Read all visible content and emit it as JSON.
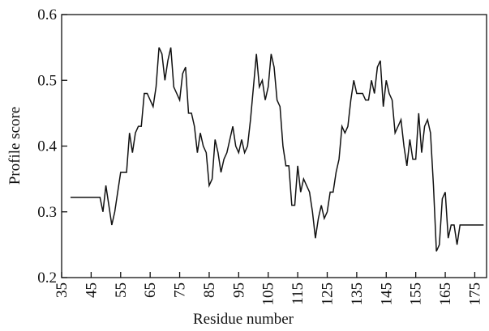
{
  "chart_data": {
    "type": "line",
    "x_label": "Residue number",
    "y_label": "Profile score",
    "xlim": [
      35,
      179
    ],
    "ylim": [
      0.2,
      0.6
    ],
    "xticks": [
      35,
      45,
      55,
      65,
      75,
      85,
      95,
      105,
      115,
      125,
      135,
      145,
      155,
      165,
      175
    ],
    "yticks": [
      0.2,
      0.3,
      0.4,
      0.5,
      0.6
    ],
    "color": "#111111",
    "x": [
      38,
      48,
      49,
      50,
      51,
      52,
      53,
      54,
      55,
      56,
      57,
      58,
      59,
      60,
      61,
      62,
      63,
      64,
      65,
      66,
      67,
      68,
      69,
      70,
      71,
      72,
      73,
      74,
      75,
      76,
      77,
      78,
      79,
      80,
      81,
      82,
      83,
      84,
      85,
      86,
      87,
      88,
      89,
      90,
      91,
      92,
      93,
      94,
      95,
      96,
      97,
      98,
      99,
      100,
      101,
      102,
      103,
      104,
      105,
      106,
      107,
      108,
      109,
      110,
      111,
      112,
      113,
      114,
      115,
      116,
      117,
      118,
      119,
      120,
      121,
      122,
      123,
      124,
      125,
      126,
      127,
      128,
      129,
      130,
      131,
      132,
      133,
      134,
      135,
      136,
      137,
      138,
      139,
      140,
      141,
      142,
      143,
      144,
      145,
      146,
      147,
      148,
      149,
      150,
      151,
      152,
      153,
      154,
      155,
      156,
      157,
      158,
      159,
      160,
      161,
      162,
      163,
      164,
      165,
      166,
      167,
      168,
      169,
      170,
      171,
      178
    ],
    "values": [
      0.322,
      0.322,
      0.3,
      0.34,
      0.31,
      0.28,
      0.3,
      0.33,
      0.36,
      0.36,
      0.36,
      0.42,
      0.39,
      0.42,
      0.43,
      0.43,
      0.48,
      0.48,
      0.47,
      0.46,
      0.49,
      0.55,
      0.54,
      0.5,
      0.53,
      0.55,
      0.49,
      0.48,
      0.47,
      0.51,
      0.52,
      0.45,
      0.45,
      0.43,
      0.39,
      0.42,
      0.4,
      0.39,
      0.34,
      0.35,
      0.41,
      0.39,
      0.36,
      0.38,
      0.39,
      0.41,
      0.43,
      0.4,
      0.39,
      0.41,
      0.39,
      0.4,
      0.44,
      0.49,
      0.54,
      0.49,
      0.5,
      0.47,
      0.49,
      0.54,
      0.52,
      0.47,
      0.46,
      0.4,
      0.37,
      0.37,
      0.31,
      0.31,
      0.37,
      0.33,
      0.35,
      0.34,
      0.33,
      0.3,
      0.26,
      0.29,
      0.31,
      0.29,
      0.3,
      0.33,
      0.33,
      0.36,
      0.38,
      0.43,
      0.42,
      0.43,
      0.47,
      0.5,
      0.48,
      0.48,
      0.48,
      0.47,
      0.47,
      0.5,
      0.48,
      0.52,
      0.53,
      0.46,
      0.5,
      0.48,
      0.47,
      0.42,
      0.43,
      0.44,
      0.4,
      0.37,
      0.41,
      0.38,
      0.38,
      0.45,
      0.39,
      0.43,
      0.44,
      0.42,
      0.34,
      0.24,
      0.25,
      0.32,
      0.33,
      0.26,
      0.28,
      0.28,
      0.25,
      0.28,
      0.28,
      0.28
    ]
  }
}
